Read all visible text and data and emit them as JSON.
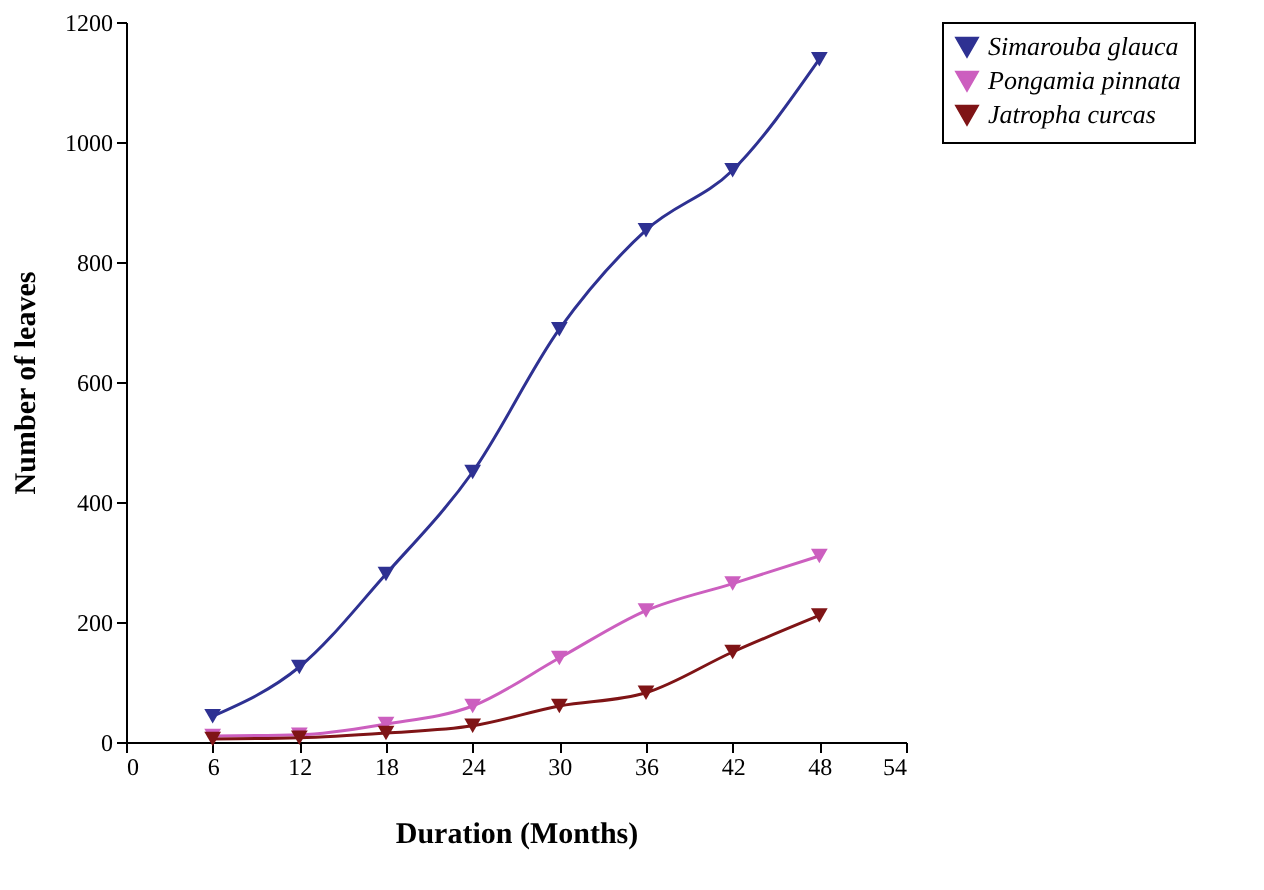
{
  "chart_data": {
    "type": "line",
    "xlabel": "Duration (Months)",
    "ylabel": "Number of leaves",
    "x": [
      6,
      12,
      18,
      24,
      30,
      36,
      42,
      48
    ],
    "series": [
      {
        "name": "Simarouba glauca",
        "color": "#2e3192",
        "values": [
          43,
          125,
          280,
          450,
          688,
          853,
          953,
          1138
        ]
      },
      {
        "name": "Pongamia pinnata",
        "color": "#cc5fbf",
        "values": [
          10,
          12,
          30,
          60,
          140,
          219,
          264,
          310
        ]
      },
      {
        "name": "Jatropha curcas",
        "color": "#7f1416",
        "values": [
          5,
          7,
          15,
          27,
          60,
          82,
          150,
          211
        ]
      }
    ],
    "xlim": [
      0,
      54
    ],
    "xticks": [
      0,
      6,
      12,
      18,
      24,
      30,
      36,
      42,
      48,
      54
    ],
    "ylim": [
      0,
      1200
    ],
    "yticks": [
      0,
      200,
      400,
      600,
      800,
      1000,
      1200
    ],
    "grid": false,
    "legend": "right",
    "marker": "triangle",
    "line_style": "solid"
  }
}
